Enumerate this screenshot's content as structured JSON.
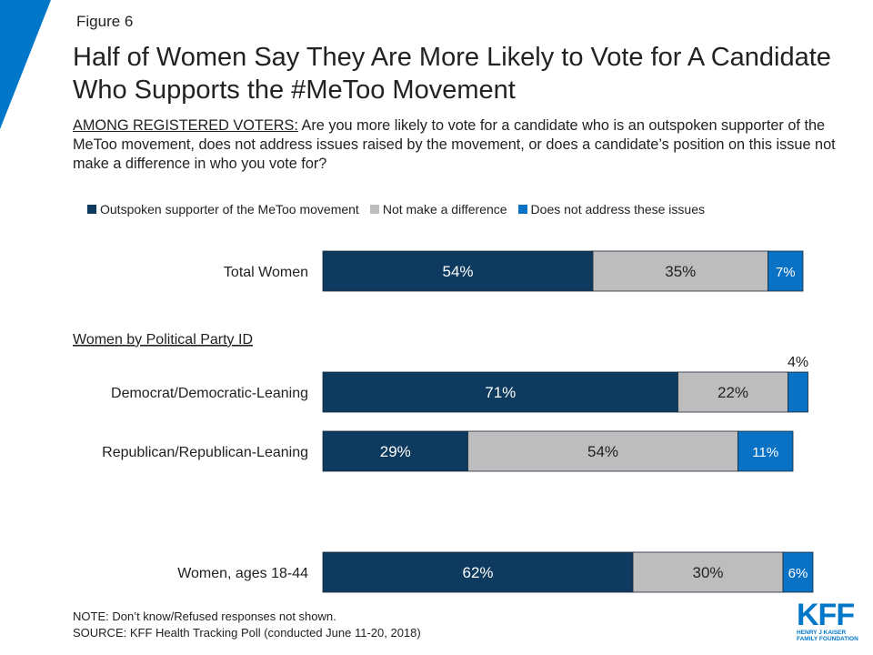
{
  "figure_label": "Figure 6",
  "title": "Half of Women Say They Are More Likely to Vote for A Candidate Who Supports the #MeToo Movement",
  "subtitle_prefix": "AMONG REGISTERED VOTERS:",
  "subtitle_text": " Are you more likely to vote for a candidate who is an outspoken supporter of the MeToo movement, does not address issues raised by the movement, or does a candidate’s position on this issue not make a difference in who you vote for?",
  "section_label": "Women by Political Party ID",
  "note": "NOTE: Don’t know/Refused responses not shown.",
  "source": "SOURCE: KFF Health Tracking Poll (conducted June 11-20, 2018)",
  "logo": {
    "mark": "KFF",
    "line1": "HENRY J KAISER",
    "line2": "FAMILY FOUNDATION"
  },
  "colors": {
    "supporter": "#0f3a5f",
    "no_difference": "#bdbdbd",
    "not_address": "#0a72c5",
    "accent": "#0077c8"
  },
  "chart_data": {
    "type": "bar",
    "orientation": "horizontal",
    "stacked": true,
    "categories": [
      "Total Women",
      "Democrat/Democratic-Leaning",
      "Republican/Republican-Leaning",
      "Women, ages 18-44"
    ],
    "series": [
      {
        "name": "Outspoken supporter of the MeToo movement",
        "values": [
          54,
          71,
          29,
          62
        ],
        "labels": [
          "54%",
          "71%",
          "29%",
          "62%"
        ]
      },
      {
        "name": "Not make a difference",
        "values": [
          35,
          22,
          54,
          30
        ],
        "labels": [
          "35%",
          "22%",
          "54%",
          "30%"
        ]
      },
      {
        "name": "Does not address these issues",
        "values": [
          7,
          4,
          11,
          6
        ],
        "labels": [
          "7%",
          "4%",
          "11%",
          "6%"
        ]
      }
    ],
    "legend_position": "top",
    "grid": false,
    "xlim": [
      0,
      100
    ]
  }
}
